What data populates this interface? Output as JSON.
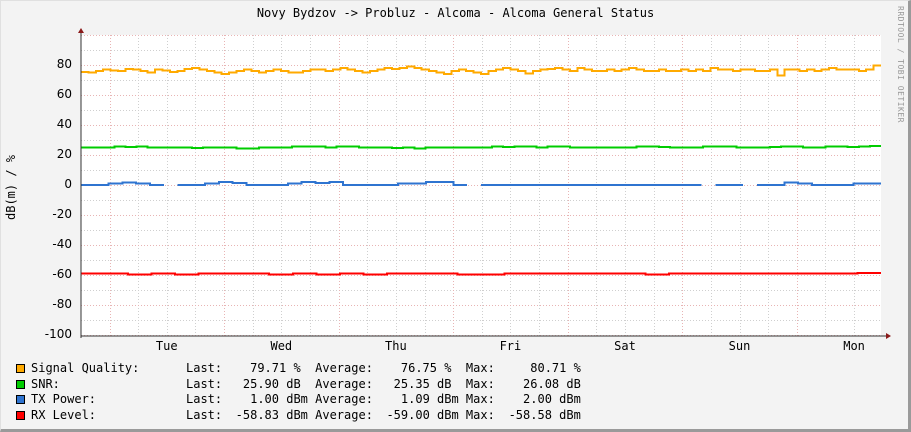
{
  "title": "Novy Bydzov -> Probluz - Alcoma - Alcoma General Status",
  "watermark": "RRDTOOL / TOBI OETIKER",
  "y_axis_label": "dB(m) / %",
  "y_ticks": [
    "80",
    "60",
    "40",
    "20",
    "0",
    "-20",
    "-40",
    "-60",
    "-80",
    "-100"
  ],
  "x_ticks": [
    "Tue",
    "Wed",
    "Thu",
    "Fri",
    "Sat",
    "Sun",
    "Mon"
  ],
  "legend": [
    {
      "name": "Signal Quality:",
      "color": "#FFAA00",
      "last_label": "Last:",
      "last": "  79.71 %  ",
      "avg_label": "Average:",
      "avg": "  76.75 %  ",
      "max_label": "Max:",
      "max": "  80.71 %"
    },
    {
      "name": "SNR:",
      "color": "#00CC00",
      "last_label": "Last:",
      "last": "  25.90 dB  ",
      "avg_label": "Average:",
      "avg": "  25.35 dB  ",
      "max_label": "Max:",
      "max": "  26.08 dB"
    },
    {
      "name": "TX Power:",
      "color": "#2F74D0",
      "last_label": "Last:",
      "last": "   1.00 dBm ",
      "avg_label": "Average:",
      "avg": "   1.09 dBm ",
      "max_label": "Max:",
      "max": "   2.00 dBm"
    },
    {
      "name": "RX Level:",
      "color": "#FF0000",
      "last_label": "Last:",
      "last": " -58.83 dBm ",
      "avg_label": "Average:",
      "avg": " -59.00 dBm ",
      "max_label": "Max:",
      "max": " -58.58 dBm"
    }
  ],
  "chart_data": {
    "type": "line",
    "title": "Novy Bydzov -> Probluz - Alcoma - Alcoma General Status",
    "xlabel": "",
    "ylabel": "dB(m) / %",
    "ylim": [
      -100,
      100
    ],
    "y_ticks": [
      80,
      60,
      40,
      20,
      0,
      -20,
      -40,
      -60,
      -80,
      -100
    ],
    "x_tick_labels": [
      "Tue",
      "Wed",
      "Thu",
      "Fri",
      "Sat",
      "Sun",
      "Mon"
    ],
    "grid": true,
    "legend_position": "bottom",
    "series": [
      {
        "name": "Signal Quality",
        "unit": "%",
        "color": "#FFAA00",
        "last": 79.71,
        "average": 76.75,
        "max": 80.71,
        "values": [
          75.5,
          75,
          76,
          77,
          76.5,
          76,
          77.5,
          77,
          76,
          75,
          77,
          76.5,
          75.5,
          76,
          77.5,
          78,
          77,
          76,
          75,
          74,
          75,
          76,
          77,
          76,
          75,
          76,
          77,
          76,
          75,
          75,
          76,
          77,
          77,
          76,
          77,
          78,
          77,
          76,
          75,
          76,
          77,
          78,
          77.5,
          78,
          79,
          78,
          77,
          76,
          75,
          74,
          76,
          77,
          76,
          75,
          74,
          76,
          77,
          78,
          77,
          76,
          74.5,
          76,
          77,
          77.5,
          78,
          77,
          76,
          78,
          77,
          76,
          76,
          77,
          76,
          77,
          78,
          77,
          76,
          76,
          77,
          76,
          76,
          77,
          76,
          77,
          76,
          78,
          77,
          77,
          76,
          77,
          77,
          76,
          76,
          77,
          73,
          77,
          77,
          76,
          77,
          76,
          77,
          78,
          77,
          77,
          77,
          76,
          77,
          79.7
        ]
      },
      {
        "name": "SNR",
        "unit": "dB",
        "color": "#00CC00",
        "last": 25.9,
        "average": 25.35,
        "max": 26.08,
        "values": [
          25,
          25,
          25,
          25.8,
          25.3,
          25.8,
          25,
          25,
          25,
          25,
          24.7,
          25,
          25,
          25,
          24.3,
          24.3,
          25,
          25,
          25,
          25.8,
          25.6,
          25.8,
          25,
          25.6,
          25.8,
          25,
          25,
          25,
          24.7,
          25,
          24.4,
          25,
          25,
          25,
          25,
          25,
          25,
          25.8,
          25.5,
          25.8,
          25.8,
          25,
          25.6,
          25.6,
          25,
          25,
          25,
          25,
          25,
          25,
          25.8,
          25.6,
          25.2,
          25,
          25,
          25,
          25.8,
          25.6,
          25.8,
          25,
          25,
          25,
          25.2,
          25.8,
          25.8,
          25,
          25,
          25.8,
          25.8,
          25.2,
          25.8,
          25.9
        ]
      },
      {
        "name": "TX Power",
        "unit": "dBm",
        "color": "#2F74D0",
        "last": 1.0,
        "average": 1.09,
        "max": 2.0,
        "values": [
          0,
          0,
          1,
          1.8,
          1,
          0,
          null,
          0,
          0,
          1,
          2,
          1.5,
          0,
          0,
          0,
          1,
          2,
          1.5,
          2,
          0,
          0,
          0,
          0,
          1,
          1,
          2,
          2,
          0,
          null,
          0,
          0,
          0,
          0,
          0,
          0,
          0,
          0,
          0,
          0,
          0,
          0,
          0,
          0,
          0,
          0,
          null,
          0,
          0,
          null,
          0,
          0,
          1.8,
          1,
          0,
          0,
          0,
          1,
          1
        ]
      },
      {
        "name": "RX Level",
        "unit": "dBm",
        "color": "#FF0000",
        "last": -58.83,
        "average": -59.0,
        "max": -58.58,
        "values": [
          -59,
          -59,
          -59.8,
          -59,
          -59.8,
          -59,
          -59,
          -59,
          -59.8,
          -59,
          -59.8,
          -59,
          -59.8,
          -59,
          -59,
          -59,
          -59.8,
          -59.8,
          -59,
          -59,
          -59,
          -59,
          -59,
          -59,
          -59.8,
          -59,
          -59,
          -59,
          -59,
          -59,
          -59,
          -59,
          -59,
          -58.8
        ]
      }
    ]
  }
}
